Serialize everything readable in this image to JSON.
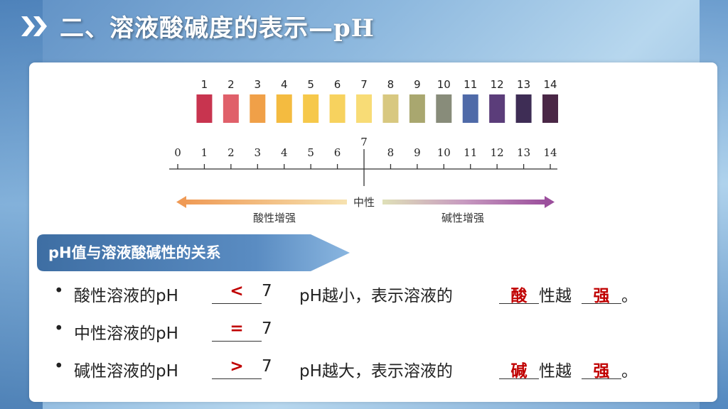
{
  "title": "二、溶液酸碱度的表示—pH",
  "chart_data": {
    "type": "diagram",
    "color_scale": {
      "labels": [
        "1",
        "2",
        "3",
        "4",
        "5",
        "6",
        "7",
        "8",
        "9",
        "10",
        "11",
        "12",
        "13",
        "14"
      ],
      "colors": [
        "#c8344f",
        "#e0606a",
        "#f0a048",
        "#f4bb40",
        "#f6c84a",
        "#f7d25e",
        "#f8dc76",
        "#d8c880",
        "#a9a76f",
        "#888c7a",
        "#4f6aa8",
        "#5b3d7a",
        "#3e2d55",
        "#4a2746"
      ]
    },
    "axis": {
      "ticks": [
        "0",
        "1",
        "2",
        "3",
        "4",
        "5",
        "6",
        "7",
        "8",
        "9",
        "10",
        "11",
        "12",
        "13",
        "14"
      ],
      "neutral_mark": "7"
    },
    "arrows": {
      "center_label": "中性",
      "left_label": "酸性增强",
      "right_label": "碱性增强",
      "left_color": "#f0a060",
      "right_color": "#a05aa0"
    }
  },
  "section": {
    "title": "pH值与溶液酸碱性的关系"
  },
  "rows": [
    {
      "bullet": "•",
      "prefix": "酸性溶液的pH",
      "symbol": "<",
      "seven": "7",
      "mid": "pH越小，表示溶液的",
      "blank1": "酸",
      "mid2": "性越",
      "blank2": "强",
      "end": "。"
    },
    {
      "bullet": "•",
      "prefix": "中性溶液的pH",
      "symbol": "=",
      "seven": "7"
    },
    {
      "bullet": "•",
      "prefix": "碱性溶液的pH",
      "symbol": ">",
      "seven": "7",
      "mid": "pH越大，表示溶液的",
      "blank1": "碱",
      "mid2": "性越",
      "blank2": "强",
      "end": "。"
    }
  ]
}
